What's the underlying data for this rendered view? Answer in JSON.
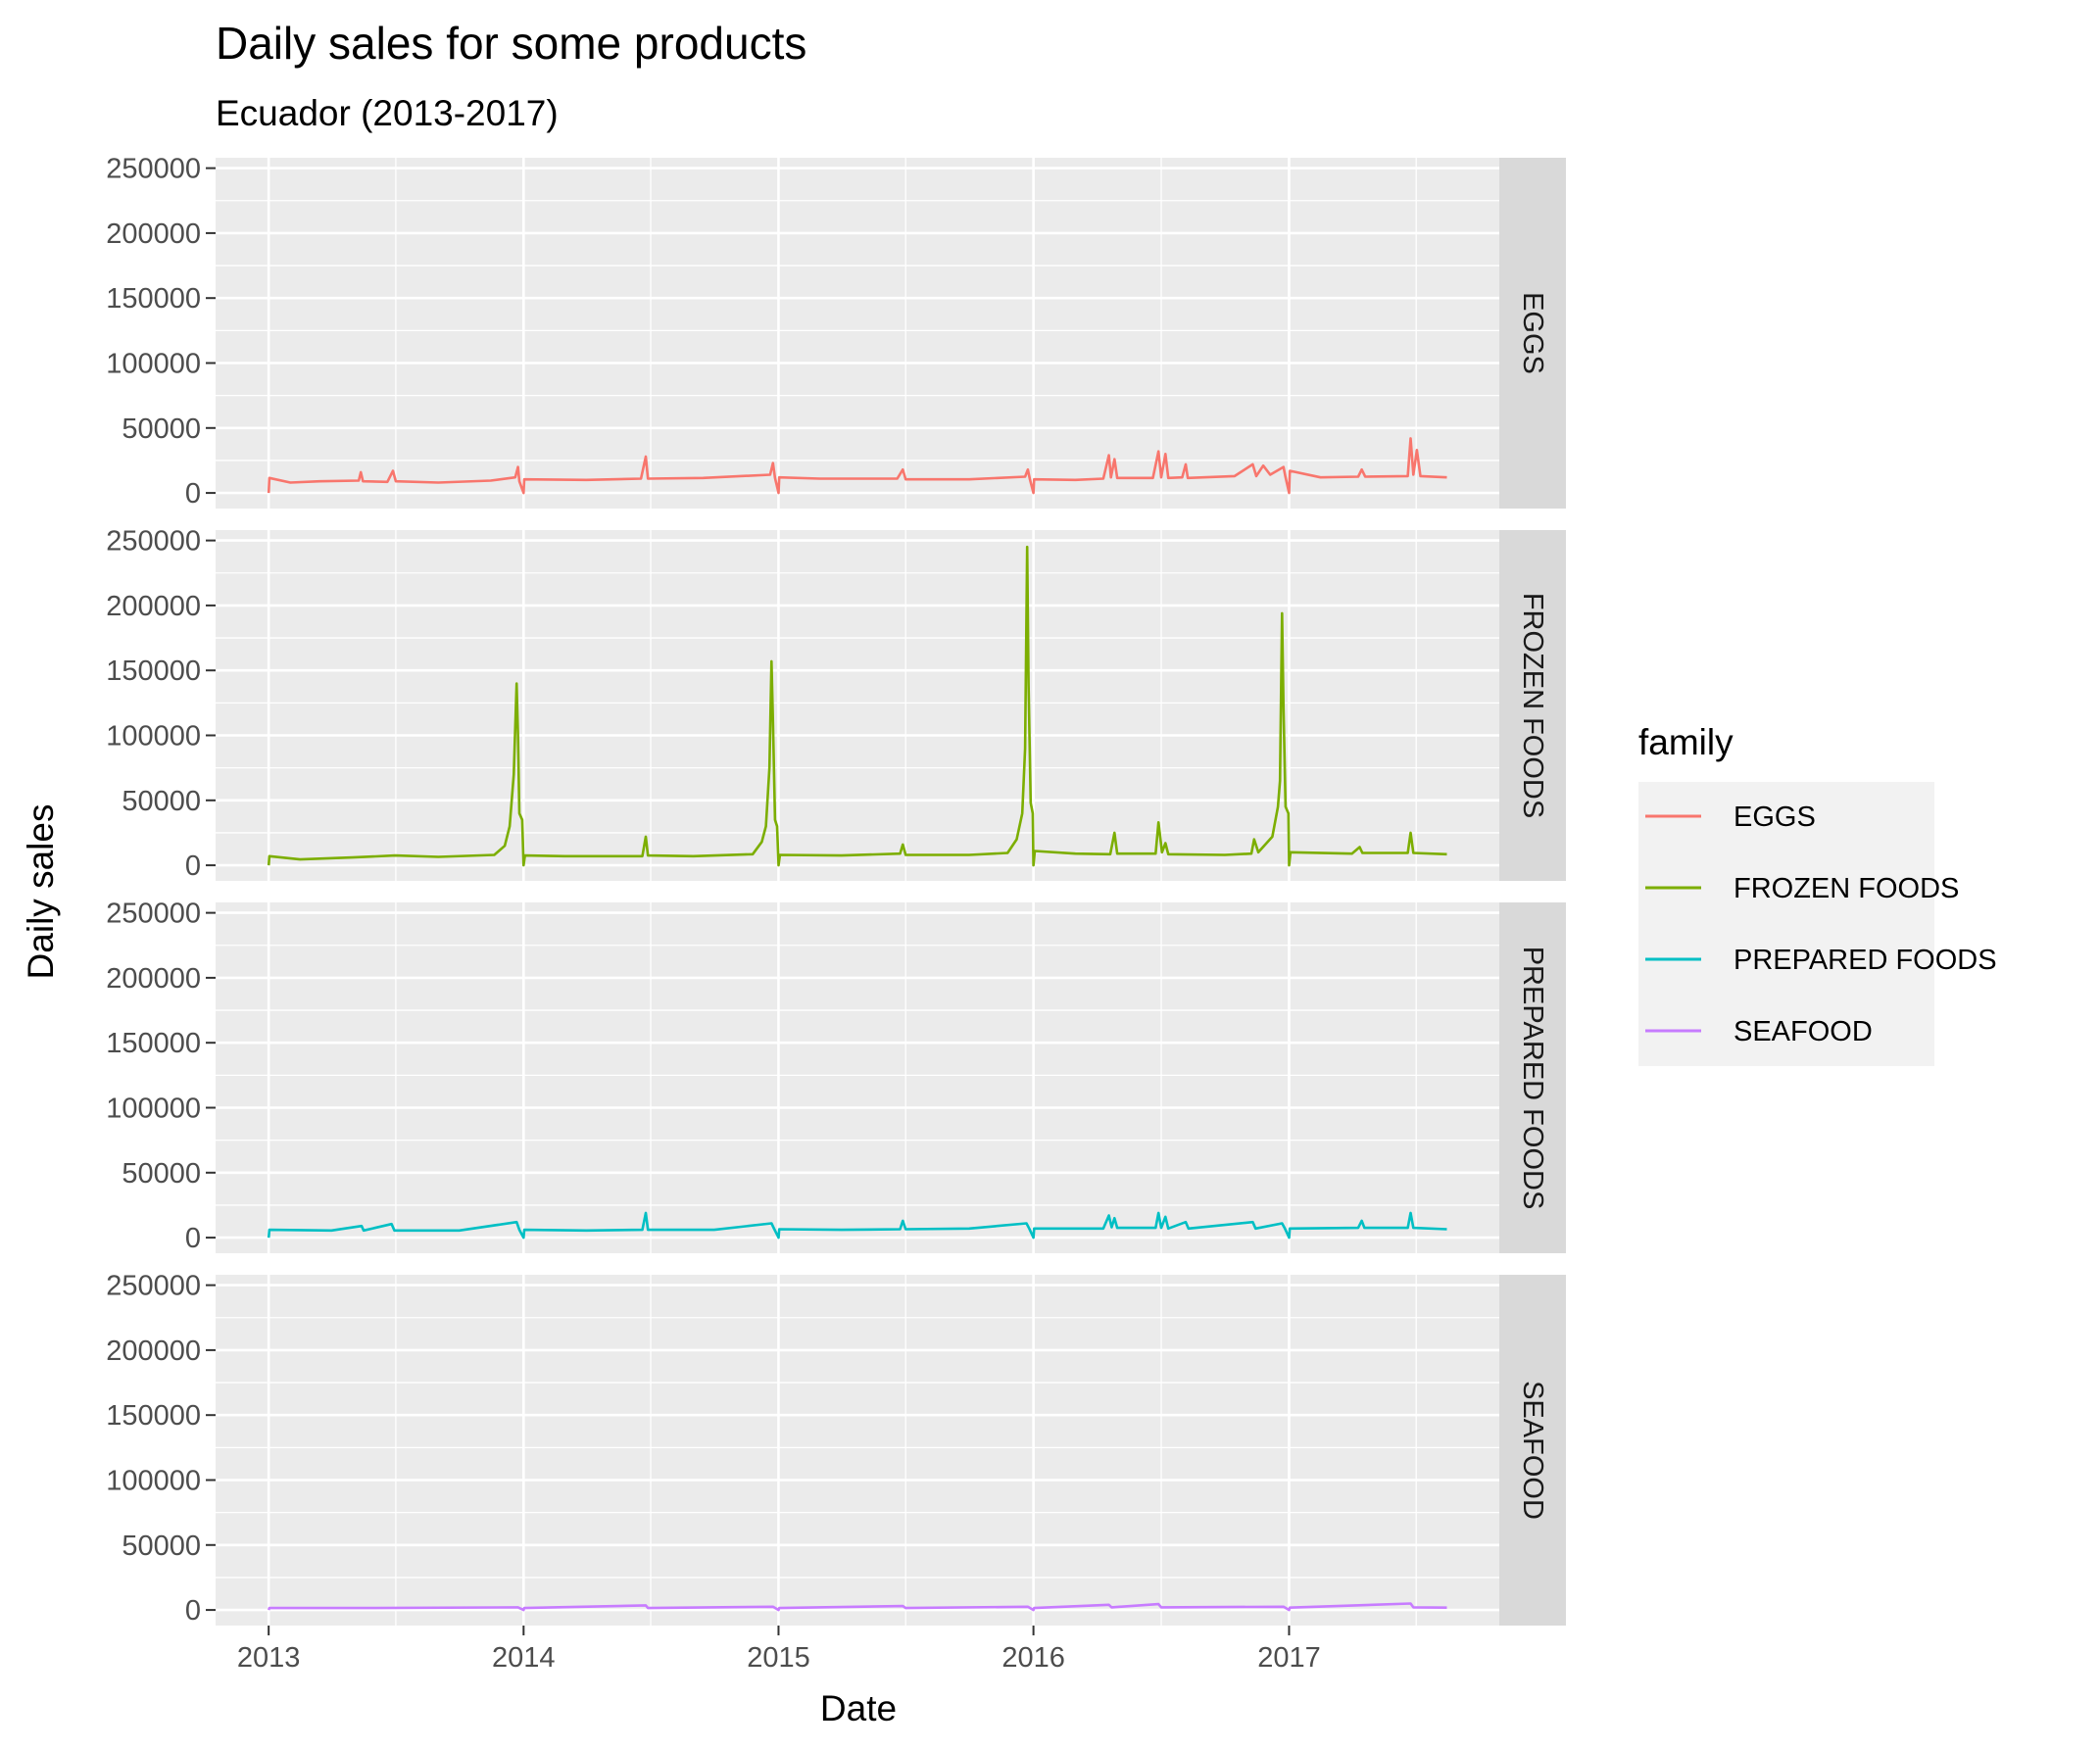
{
  "chart_data": {
    "type": "line",
    "title": "Daily sales for some products",
    "subtitle": "Ecuador (2013-2017)",
    "xlabel": "Date",
    "ylabel": "Daily sales",
    "facet_layout": "rows, shared x and y axes",
    "x_ticks": [
      "2013",
      "2014",
      "2015",
      "2016",
      "2017"
    ],
    "y_ticks": [
      0,
      50000,
      100000,
      150000,
      200000,
      250000
    ],
    "xlim": [
      "2012-10-17",
      "2017-10-29"
    ],
    "ylim": [
      -12000,
      258000
    ],
    "grid": true,
    "legend": {
      "title": "family",
      "position": "right"
    },
    "series": [
      {
        "name": "EGGS",
        "color": "#F8766D",
        "points": [
          [
            "2013-01-01",
            0
          ],
          [
            "2013-01-02",
            11500
          ],
          [
            "2013-02-01",
            8000
          ],
          [
            "2013-03-15",
            9000
          ],
          [
            "2013-05-10",
            9500
          ],
          [
            "2013-05-13",
            16000
          ],
          [
            "2013-05-16",
            9000
          ],
          [
            "2013-06-20",
            8500
          ],
          [
            "2013-06-28",
            17000
          ],
          [
            "2013-07-02",
            9000
          ],
          [
            "2013-09-01",
            8000
          ],
          [
            "2013-11-15",
            9500
          ],
          [
            "2013-12-20",
            12000
          ],
          [
            "2013-12-24",
            20000
          ],
          [
            "2013-12-26",
            9000
          ],
          [
            "2014-01-01",
            0
          ],
          [
            "2014-01-02",
            10500
          ],
          [
            "2014-04-01",
            10000
          ],
          [
            "2014-06-18",
            11000
          ],
          [
            "2014-06-25",
            28000
          ],
          [
            "2014-06-28",
            11000
          ],
          [
            "2014-09-15",
            11500
          ],
          [
            "2014-12-20",
            14000
          ],
          [
            "2014-12-24",
            23000
          ],
          [
            "2014-12-27",
            11500
          ],
          [
            "2015-01-01",
            0
          ],
          [
            "2015-01-02",
            12000
          ],
          [
            "2015-03-01",
            11000
          ],
          [
            "2015-06-20",
            11000
          ],
          [
            "2015-06-28",
            18000
          ],
          [
            "2015-07-02",
            10500
          ],
          [
            "2015-10-01",
            10500
          ],
          [
            "2015-12-20",
            12500
          ],
          [
            "2015-12-24",
            18000
          ],
          [
            "2015-12-27",
            10500
          ],
          [
            "2016-01-01",
            0
          ],
          [
            "2016-01-02",
            10500
          ],
          [
            "2016-03-01",
            10000
          ],
          [
            "2016-04-10",
            11000
          ],
          [
            "2016-04-18",
            29000
          ],
          [
            "2016-04-21",
            12000
          ],
          [
            "2016-04-26",
            26000
          ],
          [
            "2016-04-30",
            11500
          ],
          [
            "2016-06-20",
            11500
          ],
          [
            "2016-06-28",
            32000
          ],
          [
            "2016-07-02",
            12000
          ],
          [
            "2016-07-08",
            30000
          ],
          [
            "2016-07-12",
            11500
          ],
          [
            "2016-08-01",
            12000
          ],
          [
            "2016-08-06",
            22000
          ],
          [
            "2016-08-09",
            11500
          ],
          [
            "2016-10-15",
            13000
          ],
          [
            "2016-11-10",
            22000
          ],
          [
            "2016-11-15",
            13000
          ],
          [
            "2016-11-25",
            21000
          ],
          [
            "2016-12-05",
            14000
          ],
          [
            "2016-12-24",
            20000
          ],
          [
            "2016-12-27",
            12000
          ],
          [
            "2017-01-01",
            0
          ],
          [
            "2017-01-02",
            17000
          ],
          [
            "2017-02-15",
            12000
          ],
          [
            "2017-04-10",
            12500
          ],
          [
            "2017-04-15",
            18000
          ],
          [
            "2017-04-20",
            12500
          ],
          [
            "2017-06-20",
            13000
          ],
          [
            "2017-06-24",
            42000
          ],
          [
            "2017-06-28",
            14000
          ],
          [
            "2017-07-03",
            33000
          ],
          [
            "2017-07-08",
            13000
          ],
          [
            "2017-08-15",
            12000
          ]
        ]
      },
      {
        "name": "FROZEN FOODS",
        "color": "#7CAE00",
        "points": [
          [
            "2013-01-01",
            0
          ],
          [
            "2013-01-02",
            7000
          ],
          [
            "2013-02-15",
            4500
          ],
          [
            "2013-05-01",
            6000
          ],
          [
            "2013-07-01",
            7500
          ],
          [
            "2013-09-01",
            6500
          ],
          [
            "2013-11-20",
            8000
          ],
          [
            "2013-12-05",
            15000
          ],
          [
            "2013-12-12",
            30000
          ],
          [
            "2013-12-18",
            70000
          ],
          [
            "2013-12-22",
            140000
          ],
          [
            "2013-12-24",
            100000
          ],
          [
            "2013-12-26",
            40000
          ],
          [
            "2013-12-30",
            35000
          ],
          [
            "2014-01-01",
            0
          ],
          [
            "2014-01-03",
            7500
          ],
          [
            "2014-03-01",
            7000
          ],
          [
            "2014-06-20",
            7000
          ],
          [
            "2014-06-25",
            22000
          ],
          [
            "2014-06-28",
            7500
          ],
          [
            "2014-09-01",
            7000
          ],
          [
            "2014-11-25",
            8500
          ],
          [
            "2014-12-08",
            18000
          ],
          [
            "2014-12-14",
            30000
          ],
          [
            "2014-12-19",
            75000
          ],
          [
            "2014-12-22",
            157000
          ],
          [
            "2014-12-24",
            110000
          ],
          [
            "2014-12-27",
            35000
          ],
          [
            "2014-12-30",
            30000
          ],
          [
            "2015-01-01",
            0
          ],
          [
            "2015-01-03",
            8000
          ],
          [
            "2015-04-01",
            7500
          ],
          [
            "2015-06-24",
            9000
          ],
          [
            "2015-06-28",
            16000
          ],
          [
            "2015-07-02",
            8000
          ],
          [
            "2015-10-01",
            8000
          ],
          [
            "2015-11-25",
            9500
          ],
          [
            "2015-12-08",
            20000
          ],
          [
            "2015-12-16",
            40000
          ],
          [
            "2015-12-20",
            90000
          ],
          [
            "2015-12-23",
            245000
          ],
          [
            "2015-12-25",
            140000
          ],
          [
            "2015-12-28",
            48000
          ],
          [
            "2015-12-31",
            40000
          ],
          [
            "2016-01-01",
            0
          ],
          [
            "2016-01-03",
            11000
          ],
          [
            "2016-03-01",
            9000
          ],
          [
            "2016-04-20",
            8500
          ],
          [
            "2016-04-26",
            25000
          ],
          [
            "2016-04-30",
            9000
          ],
          [
            "2016-06-24",
            9000
          ],
          [
            "2016-06-28",
            33000
          ],
          [
            "2016-07-03",
            10000
          ],
          [
            "2016-07-08",
            17000
          ],
          [
            "2016-07-12",
            8500
          ],
          [
            "2016-10-01",
            8000
          ],
          [
            "2016-11-08",
            9000
          ],
          [
            "2016-11-12",
            20000
          ],
          [
            "2016-11-18",
            10000
          ],
          [
            "2016-12-08",
            22000
          ],
          [
            "2016-12-16",
            45000
          ],
          [
            "2016-12-19",
            65000
          ],
          [
            "2016-12-22",
            194000
          ],
          [
            "2016-12-24",
            120000
          ],
          [
            "2016-12-27",
            45000
          ],
          [
            "2016-12-31",
            40000
          ],
          [
            "2017-01-01",
            0
          ],
          [
            "2017-01-03",
            10000
          ],
          [
            "2017-04-01",
            9000
          ],
          [
            "2017-04-12",
            14000
          ],
          [
            "2017-04-16",
            9500
          ],
          [
            "2017-06-20",
            9500
          ],
          [
            "2017-06-24",
            25000
          ],
          [
            "2017-06-28",
            9500
          ],
          [
            "2017-08-15",
            8500
          ]
        ]
      },
      {
        "name": "PREPARED FOODS",
        "color": "#00BFC4",
        "points": [
          [
            "2013-01-01",
            0
          ],
          [
            "2013-01-02",
            6000
          ],
          [
            "2013-04-01",
            5500
          ],
          [
            "2013-05-14",
            9000
          ],
          [
            "2013-05-17",
            5500
          ],
          [
            "2013-06-26",
            10500
          ],
          [
            "2013-06-30",
            5500
          ],
          [
            "2013-10-01",
            5500
          ],
          [
            "2013-12-22",
            12000
          ],
          [
            "2013-12-26",
            6000
          ],
          [
            "2014-01-01",
            0
          ],
          [
            "2014-01-02",
            6000
          ],
          [
            "2014-04-01",
            5500
          ],
          [
            "2014-06-20",
            6000
          ],
          [
            "2014-06-25",
            19000
          ],
          [
            "2014-06-28",
            6000
          ],
          [
            "2014-10-01",
            6000
          ],
          [
            "2014-12-22",
            11000
          ],
          [
            "2014-12-26",
            6500
          ],
          [
            "2015-01-01",
            0
          ],
          [
            "2015-01-02",
            6500
          ],
          [
            "2015-04-01",
            6000
          ],
          [
            "2015-06-24",
            6500
          ],
          [
            "2015-06-28",
            13000
          ],
          [
            "2015-07-02",
            6500
          ],
          [
            "2015-10-01",
            7000
          ],
          [
            "2015-12-22",
            11000
          ],
          [
            "2015-12-26",
            7000
          ],
          [
            "2016-01-01",
            0
          ],
          [
            "2016-01-02",
            7000
          ],
          [
            "2016-04-10",
            7000
          ],
          [
            "2016-04-18",
            17000
          ],
          [
            "2016-04-22",
            8000
          ],
          [
            "2016-04-26",
            15000
          ],
          [
            "2016-04-30",
            7500
          ],
          [
            "2016-06-24",
            7500
          ],
          [
            "2016-06-28",
            19000
          ],
          [
            "2016-07-02",
            7500
          ],
          [
            "2016-07-08",
            16000
          ],
          [
            "2016-07-12",
            7000
          ],
          [
            "2016-08-06",
            12000
          ],
          [
            "2016-08-10",
            7000
          ],
          [
            "2016-11-10",
            12000
          ],
          [
            "2016-11-14",
            7000
          ],
          [
            "2016-12-22",
            11000
          ],
          [
            "2016-12-26",
            7000
          ],
          [
            "2017-01-01",
            0
          ],
          [
            "2017-01-02",
            7000
          ],
          [
            "2017-04-10",
            7500
          ],
          [
            "2017-04-15",
            13000
          ],
          [
            "2017-04-19",
            7500
          ],
          [
            "2017-06-20",
            7500
          ],
          [
            "2017-06-24",
            19000
          ],
          [
            "2017-06-28",
            7500
          ],
          [
            "2017-08-15",
            6500
          ]
        ]
      },
      {
        "name": "SEAFOOD",
        "color": "#C77CFF",
        "points": [
          [
            "2013-01-01",
            0
          ],
          [
            "2013-01-02",
            1500
          ],
          [
            "2013-06-01",
            1500
          ],
          [
            "2013-12-24",
            2000
          ],
          [
            "2014-01-01",
            0
          ],
          [
            "2014-01-02",
            1500
          ],
          [
            "2014-06-25",
            3500
          ],
          [
            "2014-06-28",
            1500
          ],
          [
            "2014-12-24",
            2500
          ],
          [
            "2015-01-01",
            0
          ],
          [
            "2015-01-02",
            1500
          ],
          [
            "2015-06-28",
            3000
          ],
          [
            "2015-07-02",
            1500
          ],
          [
            "2015-12-24",
            2500
          ],
          [
            "2016-01-01",
            0
          ],
          [
            "2016-01-02",
            1500
          ],
          [
            "2016-04-18",
            4000
          ],
          [
            "2016-04-22",
            2000
          ],
          [
            "2016-06-28",
            4500
          ],
          [
            "2016-07-02",
            2000
          ],
          [
            "2016-12-24",
            2500
          ],
          [
            "2017-01-01",
            0
          ],
          [
            "2017-01-02",
            1800
          ],
          [
            "2017-06-24",
            5000
          ],
          [
            "2017-06-28",
            2000
          ],
          [
            "2017-08-15",
            1800
          ]
        ]
      }
    ]
  }
}
